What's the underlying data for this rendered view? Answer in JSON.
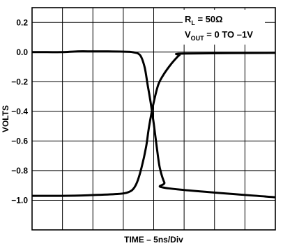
{
  "chart_data": {
    "type": "line",
    "xlabel": "TIME – 5ns/Div",
    "ylabel": "VOLTS",
    "ylim": [
      -1.2,
      0.3
    ],
    "xlim": [
      0,
      8
    ],
    "yticks": [
      0.2,
      0.0,
      -0.2,
      -0.4,
      -0.6,
      -0.8,
      -1.0
    ],
    "ytick_labels": [
      "0.2",
      "0.0",
      "−0.2",
      "−0.4",
      "−0.6",
      "−0.8",
      "−1.0"
    ],
    "grid": true,
    "annotations": [
      {
        "main": "R",
        "sub": "L",
        "rest": " = 50Ω"
      },
      {
        "main": "V",
        "sub": "OUT",
        "rest": " = 0 TO –1V"
      }
    ],
    "series": [
      {
        "x": [
          0,
          0.5,
          1,
          1.5,
          2,
          2.5,
          3,
          3.3,
          3.55,
          3.7,
          3.8,
          3.9,
          4.0,
          4.1,
          4.2,
          4.35,
          4.5,
          8
        ],
        "values": [
          0.0,
          0.0,
          0.0,
          0.005,
          0.005,
          0.005,
          0.003,
          0.0,
          -0.02,
          -0.1,
          -0.22,
          -0.34,
          -0.48,
          -0.64,
          -0.78,
          -0.88,
          -0.92,
          -0.98
        ]
      },
      {
        "x": [
          0,
          1,
          2,
          2.8,
          3.1,
          3.3,
          3.45,
          3.6,
          3.75,
          3.85,
          4.0,
          4.15,
          4.3,
          4.5,
          4.7,
          4.85,
          5.0,
          8
        ],
        "values": [
          -0.97,
          -0.97,
          -0.965,
          -0.958,
          -0.95,
          -0.93,
          -0.88,
          -0.78,
          -0.64,
          -0.5,
          -0.34,
          -0.22,
          -0.16,
          -0.1,
          -0.05,
          -0.02,
          -0.01,
          -0.005
        ]
      }
    ]
  }
}
